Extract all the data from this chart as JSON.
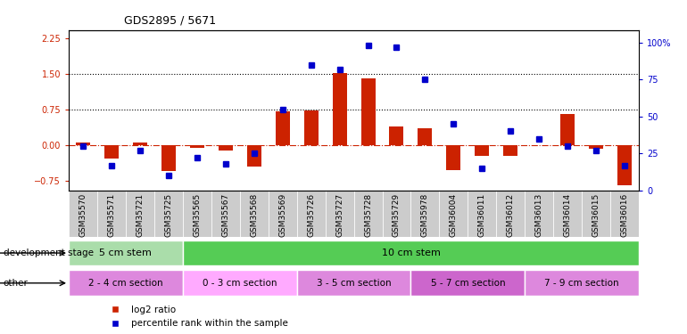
{
  "title": "GDS2895 / 5671",
  "samples": [
    "GSM35570",
    "GSM35571",
    "GSM35721",
    "GSM35725",
    "GSM35565",
    "GSM35567",
    "GSM35568",
    "GSM35569",
    "GSM35726",
    "GSM35727",
    "GSM35728",
    "GSM35729",
    "GSM35978",
    "GSM36004",
    "GSM36011",
    "GSM36012",
    "GSM36013",
    "GSM36014",
    "GSM36015",
    "GSM36016"
  ],
  "log2_ratio": [
    0.05,
    -0.28,
    0.06,
    -0.55,
    -0.05,
    -0.12,
    -0.45,
    0.72,
    0.73,
    1.52,
    1.4,
    0.4,
    0.35,
    -0.52,
    -0.22,
    -0.22,
    0.0,
    0.65,
    -0.07,
    -0.85
  ],
  "percentile": [
    30,
    17,
    27,
    10,
    22,
    18,
    25,
    55,
    85,
    82,
    98,
    97,
    75,
    45,
    15,
    40,
    35,
    30,
    27,
    17
  ],
  "dev_stage_groups": [
    {
      "label": "5 cm stem",
      "start": 0,
      "end": 4,
      "color": "#aaddaa"
    },
    {
      "label": "10 cm stem",
      "start": 4,
      "end": 20,
      "color": "#55cc55"
    }
  ],
  "other_groups": [
    {
      "label": "2 - 4 cm section",
      "start": 0,
      "end": 4,
      "color": "#dd88dd"
    },
    {
      "label": "0 - 3 cm section",
      "start": 4,
      "end": 8,
      "color": "#ffaaff"
    },
    {
      "label": "3 - 5 cm section",
      "start": 8,
      "end": 12,
      "color": "#dd88dd"
    },
    {
      "label": "5 - 7 cm section",
      "start": 12,
      "end": 16,
      "color": "#cc66cc"
    },
    {
      "label": "7 - 9 cm section",
      "start": 16,
      "end": 20,
      "color": "#dd88dd"
    }
  ],
  "ylim_left": [
    -0.95,
    2.42
  ],
  "ylim_right": [
    0,
    108.57
  ],
  "yticks_left": [
    -0.75,
    0.0,
    0.75,
    1.5,
    2.25
  ],
  "yticks_right": [
    0,
    25,
    50,
    75,
    100
  ],
  "ytick_labels_right": [
    "0",
    "25",
    "50",
    "75",
    "100%"
  ],
  "hlines": [
    0.75,
    1.5
  ],
  "bar_color": "#cc2200",
  "dot_color": "#0000cc",
  "zero_line_color": "#cc2200",
  "legend_items": [
    {
      "color": "#cc2200",
      "label": "log2 ratio"
    },
    {
      "color": "#0000cc",
      "label": "percentile rank within the sample"
    }
  ],
  "dev_stage_label": "development stage",
  "other_label": "other",
  "title_fontsize": 9,
  "tick_fontsize": 6.5,
  "axis_label_color_left": "#cc2200",
  "axis_label_color_right": "#0000cc",
  "xtick_bg": "#cccccc"
}
